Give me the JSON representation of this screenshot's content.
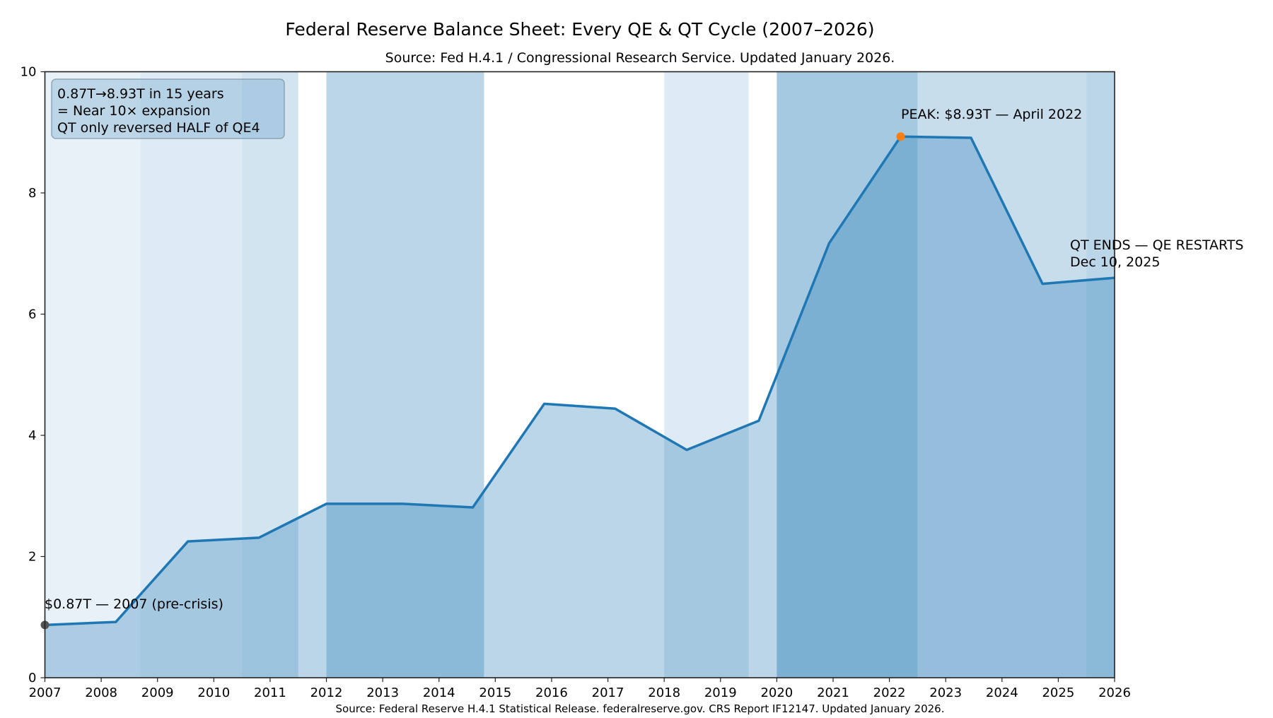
{
  "chart_data": {
    "type": "area",
    "title": "Federal Reserve Balance Sheet: Every QE & QT Cycle (2007–2026)",
    "subtitle": "Source: Fed H.4.1 / Congressional Research Service. Updated January 2026.",
    "xlabel": "",
    "ylabel": "",
    "xlim": [
      2007,
      2026
    ],
    "ylim": [
      0,
      10
    ],
    "grid": false,
    "x_ticks": [
      "2007",
      "2008",
      "2009",
      "2010",
      "2011",
      "2012",
      "2013",
      "2014",
      "2015",
      "2016",
      "2017",
      "2018",
      "2019",
      "2020",
      "2021",
      "2022",
      "2023",
      "2024",
      "2025",
      "2026"
    ],
    "y_ticks": [
      "0",
      "2",
      "4",
      "6",
      "8",
      "10"
    ],
    "line_color": "#1f77b4",
    "series": [
      {
        "x": [
          2007.0,
          2008.26,
          2009.54,
          2010.8,
          2012.0,
          2013.36,
          2014.6,
          2015.87,
          2017.13,
          2018.4,
          2019.68,
          2020.93,
          2022.2,
          2023.45,
          2024.72,
          2026.0
        ],
        "y": [
          0.87,
          0.92,
          2.25,
          2.31,
          2.87,
          2.87,
          2.81,
          4.52,
          4.44,
          3.76,
          4.24,
          7.17,
          8.93,
          8.91,
          6.5,
          6.6
        ]
      }
    ],
    "shaded_periods": [
      {
        "start": 2007.0,
        "end": 2008.7,
        "opacity": 0.1
      },
      {
        "start": 2008.7,
        "end": 2010.5,
        "opacity": 0.15
      },
      {
        "start": 2010.5,
        "end": 2011.5,
        "opacity": 0.2
      },
      {
        "start": 2012.0,
        "end": 2014.8,
        "opacity": 0.3
      },
      {
        "start": 2018.0,
        "end": 2019.5,
        "opacity": 0.15
      },
      {
        "start": 2020.0,
        "end": 2022.5,
        "opacity": 0.4
      },
      {
        "start": 2022.5,
        "end": 2025.5,
        "opacity": 0.25
      },
      {
        "start": 2025.5,
        "end": 2026.0,
        "opacity": 0.3
      }
    ],
    "markers": [
      {
        "x": 2007.0,
        "y": 0.87,
        "color": "#555555"
      },
      {
        "x": 2022.2,
        "y": 8.93,
        "color": "#ff7f0e"
      }
    ],
    "annotations": {
      "start": "$0.87T — 2007 (pre-crisis)",
      "peak": "PEAK: $8.93T — April 2022",
      "qt_end_line1": "QT ENDS — QE RESTARTS",
      "qt_end_line2": "Dec 10, 2025"
    },
    "text_box": {
      "line1": "0.87T→8.93T in 15 years",
      "line2": "= Near 10× expansion",
      "line3": "QT only reversed HALF of QE4"
    },
    "footer": "Source: Federal Reserve H.4.1 Statistical Release. federalreserve.gov. CRS Report IF12147. Updated January 2026."
  }
}
